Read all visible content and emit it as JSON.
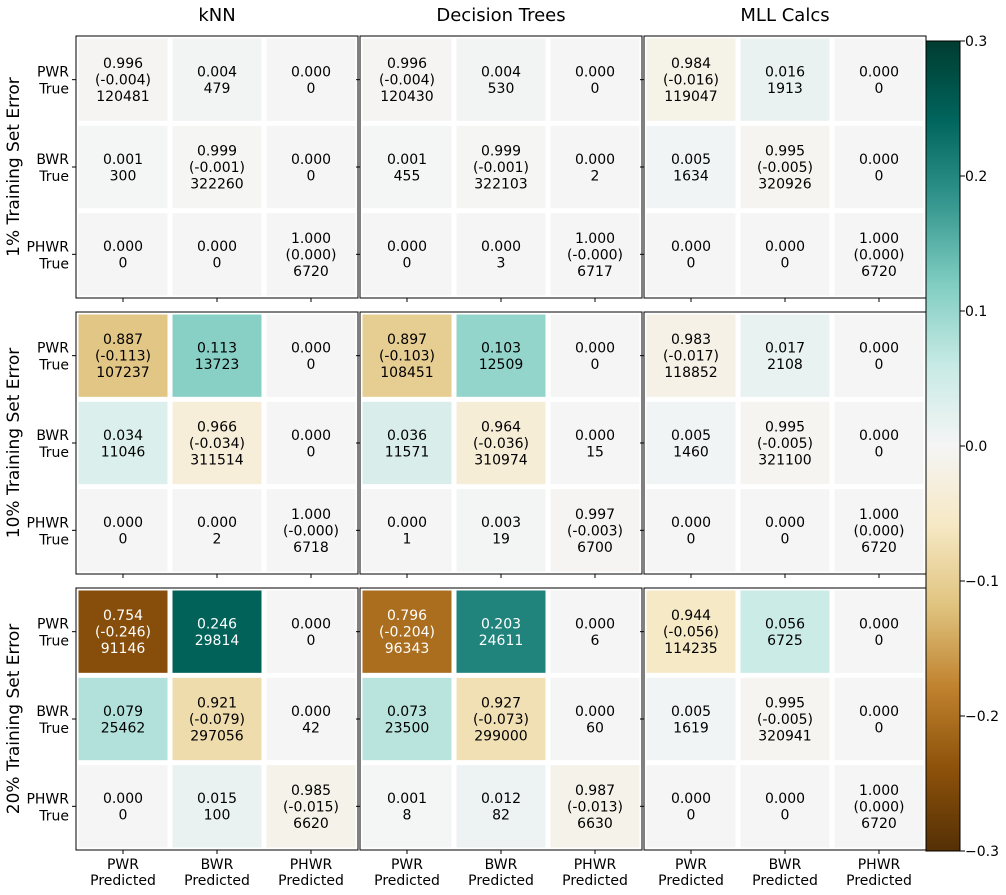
{
  "chart_data": {
    "type": "heatmap",
    "column_titles": [
      "kNN",
      "Decision Trees",
      "MLL Calcs"
    ],
    "row_titles": [
      "1% Training Set Error",
      "10% Training Set Error",
      "20% Training Set Error"
    ],
    "y_tick_labels": [
      [
        "PWR",
        "True"
      ],
      [
        "BWR",
        "True"
      ],
      [
        "PHWR",
        "True"
      ]
    ],
    "x_tick_labels": [
      [
        "PWR",
        "Predicted"
      ],
      [
        "BWR",
        "Predicted"
      ],
      [
        "PHWR",
        "Predicted"
      ]
    ],
    "colorbar": {
      "colormap": "BrBG",
      "range": [
        -0.3,
        0.3
      ],
      "ticks": [
        0.3,
        0.2,
        0.1,
        0.0,
        -0.1,
        -0.2,
        -0.3
      ],
      "tick_labels": [
        "0.3",
        "0.2",
        "0.1",
        "0.0",
        "−0.1",
        "−0.2",
        "−0.3"
      ]
    },
    "panels": [
      {
        "row": 0,
        "col": 0,
        "cells": [
          [
            "0.996",
            "(-0.004)",
            "120481"
          ],
          [
            "0.004",
            "479"
          ],
          [
            "0.000",
            "0"
          ],
          [
            "0.001",
            "300"
          ],
          [
            "0.999",
            "(-0.001)",
            "322260"
          ],
          [
            "0.000",
            "0"
          ],
          [
            "0.000",
            "0"
          ],
          [
            "0.000",
            "0"
          ],
          [
            "1.000",
            "(0.000)",
            "6720"
          ]
        ],
        "colors": [
          -0.004,
          0.004,
          0,
          0.001,
          -0.001,
          0,
          0,
          0,
          0
        ]
      },
      {
        "row": 0,
        "col": 1,
        "cells": [
          [
            "0.996",
            "(-0.004)",
            "120430"
          ],
          [
            "0.004",
            "530"
          ],
          [
            "0.000",
            "0"
          ],
          [
            "0.001",
            "455"
          ],
          [
            "0.999",
            "(-0.001)",
            "322103"
          ],
          [
            "0.000",
            "2"
          ],
          [
            "0.000",
            "0"
          ],
          [
            "0.000",
            "3"
          ],
          [
            "1.000",
            "(-0.000)",
            "6717"
          ]
        ],
        "colors": [
          -0.004,
          0.004,
          0,
          0.001,
          -0.001,
          0,
          0,
          0,
          0
        ]
      },
      {
        "row": 0,
        "col": 2,
        "cells": [
          [
            "0.984",
            "(-0.016)",
            "119047"
          ],
          [
            "0.016",
            "1913"
          ],
          [
            "0.000",
            "0"
          ],
          [
            "0.005",
            "1634"
          ],
          [
            "0.995",
            "(-0.005)",
            "320926"
          ],
          [
            "0.000",
            "0"
          ],
          [
            "0.000",
            "0"
          ],
          [
            "0.000",
            "0"
          ],
          [
            "1.000",
            "(0.000)",
            "6720"
          ]
        ],
        "colors": [
          -0.016,
          0.016,
          0,
          0.005,
          -0.005,
          0,
          0,
          0,
          0
        ]
      },
      {
        "row": 1,
        "col": 0,
        "cells": [
          [
            "0.887",
            "(-0.113)",
            "107237"
          ],
          [
            "0.113",
            "13723"
          ],
          [
            "0.000",
            "0"
          ],
          [
            "0.034",
            "11046"
          ],
          [
            "0.966",
            "(-0.034)",
            "311514"
          ],
          [
            "0.000",
            "0"
          ],
          [
            "0.000",
            "0"
          ],
          [
            "0.000",
            "2"
          ],
          [
            "1.000",
            "(-0.000)",
            "6718"
          ]
        ],
        "colors": [
          -0.113,
          0.113,
          0,
          0.034,
          -0.034,
          0,
          0,
          0,
          0
        ]
      },
      {
        "row": 1,
        "col": 1,
        "cells": [
          [
            "0.897",
            "(-0.103)",
            "108451"
          ],
          [
            "0.103",
            "12509"
          ],
          [
            "0.000",
            "0"
          ],
          [
            "0.036",
            "11571"
          ],
          [
            "0.964",
            "(-0.036)",
            "310974"
          ],
          [
            "0.000",
            "15"
          ],
          [
            "0.000",
            "1"
          ],
          [
            "0.003",
            "19"
          ],
          [
            "0.997",
            "(-0.003)",
            "6700"
          ]
        ],
        "colors": [
          -0.103,
          0.103,
          0,
          0.036,
          -0.036,
          0,
          0,
          0.003,
          -0.003
        ]
      },
      {
        "row": 1,
        "col": 2,
        "cells": [
          [
            "0.983",
            "(-0.017)",
            "118852"
          ],
          [
            "0.017",
            "2108"
          ],
          [
            "0.000",
            "0"
          ],
          [
            "0.005",
            "1460"
          ],
          [
            "0.995",
            "(-0.005)",
            "321100"
          ],
          [
            "0.000",
            "0"
          ],
          [
            "0.000",
            "0"
          ],
          [
            "0.000",
            "0"
          ],
          [
            "1.000",
            "(0.000)",
            "6720"
          ]
        ],
        "colors": [
          -0.017,
          0.017,
          0,
          0.005,
          -0.005,
          0,
          0,
          0,
          0
        ]
      },
      {
        "row": 2,
        "col": 0,
        "cells": [
          [
            "0.754",
            "(-0.246)",
            "91146"
          ],
          [
            "0.246",
            "29814"
          ],
          [
            "0.000",
            "0"
          ],
          [
            "0.079",
            "25462"
          ],
          [
            "0.921",
            "(-0.079)",
            "297056"
          ],
          [
            "0.000",
            "42"
          ],
          [
            "0.000",
            "0"
          ],
          [
            "0.015",
            "100"
          ],
          [
            "0.985",
            "(-0.015)",
            "6620"
          ]
        ],
        "colors": [
          -0.246,
          0.246,
          0,
          0.079,
          -0.079,
          0,
          0,
          0.015,
          -0.015
        ]
      },
      {
        "row": 2,
        "col": 1,
        "cells": [
          [
            "0.796",
            "(-0.204)",
            "96343"
          ],
          [
            "0.203",
            "24611"
          ],
          [
            "0.000",
            "6"
          ],
          [
            "0.073",
            "23500"
          ],
          [
            "0.927",
            "(-0.073)",
            "299000"
          ],
          [
            "0.000",
            "60"
          ],
          [
            "0.001",
            "8"
          ],
          [
            "0.012",
            "82"
          ],
          [
            "0.987",
            "(-0.013)",
            "6630"
          ]
        ],
        "colors": [
          -0.204,
          0.203,
          0,
          0.073,
          -0.073,
          0,
          0.001,
          0.012,
          -0.013
        ]
      },
      {
        "row": 2,
        "col": 2,
        "cells": [
          [
            "0.944",
            "(-0.056)",
            "114235"
          ],
          [
            "0.056",
            "6725"
          ],
          [
            "0.000",
            "0"
          ],
          [
            "0.005",
            "1619"
          ],
          [
            "0.995",
            "(-0.005)",
            "320941"
          ],
          [
            "0.000",
            "0"
          ],
          [
            "0.000",
            "0"
          ],
          [
            "0.000",
            "0"
          ],
          [
            "1.000",
            "(0.000)",
            "6720"
          ]
        ],
        "colors": [
          -0.056,
          0.056,
          0,
          0.005,
          -0.005,
          0,
          0,
          0,
          0
        ]
      }
    ]
  }
}
